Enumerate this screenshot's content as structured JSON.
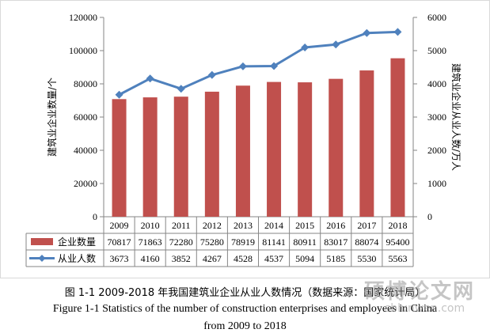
{
  "chart_data": {
    "type": "bar+line",
    "categories": [
      "2009",
      "2010",
      "2011",
      "2012",
      "2013",
      "2014",
      "2015",
      "2016",
      "2017",
      "2018"
    ],
    "series": [
      {
        "name": "企业数量",
        "type": "bar",
        "axis": "left",
        "color": "#C0504D",
        "values": [
          70817,
          71863,
          72280,
          75280,
          78919,
          81141,
          80911,
          83017,
          88074,
          95400
        ]
      },
      {
        "name": "从业人数",
        "type": "line",
        "axis": "right",
        "color": "#4F81BD",
        "values": [
          3673,
          4160,
          3852,
          4267,
          4528,
          4537,
          5094,
          5185,
          5530,
          5563
        ]
      }
    ],
    "ylabel_left": "建筑业企业数量/个",
    "ylabel_right": "建筑业企业从业人数/万人",
    "ylim_left": [
      0,
      120000
    ],
    "yticks_left": [
      "0",
      "20000",
      "40000",
      "60000",
      "80000",
      "100000",
      "120000"
    ],
    "ylim_right": [
      0,
      6000
    ],
    "yticks_right": [
      "0",
      "1000",
      "2000",
      "3000",
      "4000",
      "5000",
      "6000"
    ],
    "data_table": true
  },
  "caption": {
    "cn": "图 1-1 2009-2018 年我国建筑业企业从业人数情况（数据来源：国家统计局）",
    "en_line1": "Figure 1-1 Statistics of the number of construction enterprises and employees in China",
    "en_line2": "from 2009 to 2018"
  },
  "watermark": {
    "cn": "硕博论文网",
    "url": "sblunwen.com"
  }
}
